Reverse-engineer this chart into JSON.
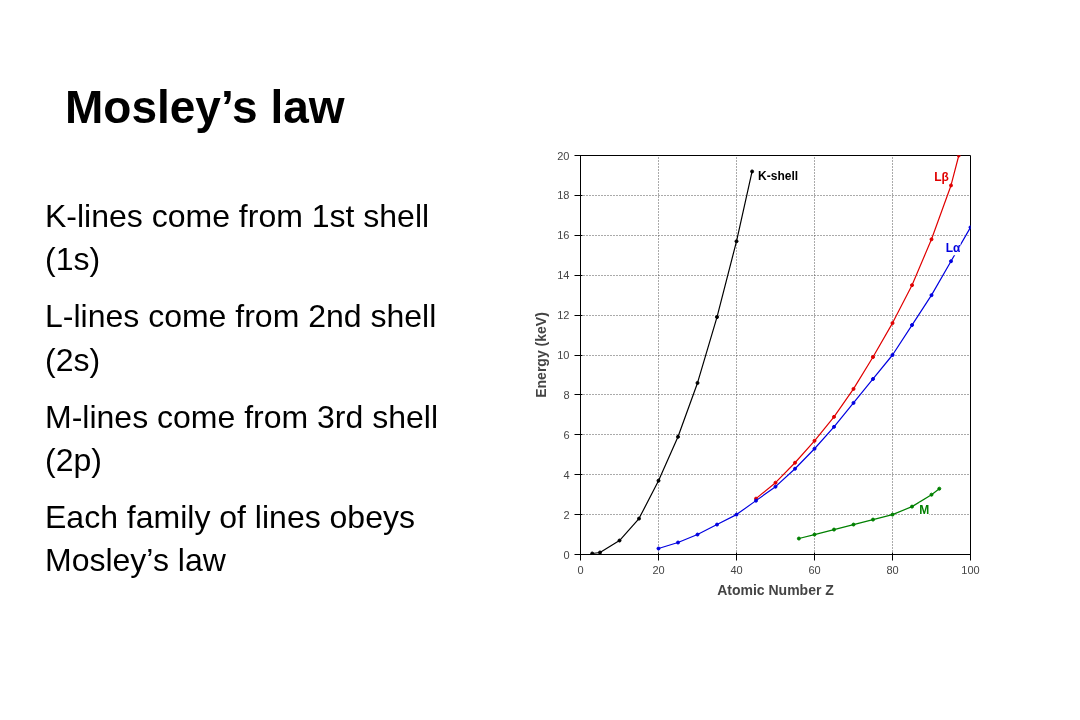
{
  "chart_data": {
    "type": "line",
    "title": "Mosley’s law",
    "xlabel": "Atomic Number Z",
    "ylabel": "Energy (keV)",
    "xlim": [
      0,
      100
    ],
    "ylim": [
      0,
      20
    ],
    "xticks": [
      0,
      20,
      40,
      60,
      80,
      100
    ],
    "yticks": [
      0,
      2,
      4,
      6,
      8,
      10,
      12,
      14,
      16,
      18,
      20
    ],
    "grid": true,
    "legend": false,
    "marker": "circle",
    "line_style": "solid",
    "annotations": [
      "K-lines come from 1st shell (1s)",
      "L-lines come from 2nd shell (2s)",
      "M-lines come from 3rd shell (2p)",
      "Each family of lines obeys Mosley’s law"
    ],
    "series": [
      {
        "name": "K-shell",
        "color": "#000000",
        "x": [
          3,
          5,
          10,
          15,
          20,
          25,
          30,
          35,
          40,
          44
        ],
        "values": [
          0.05,
          0.1,
          0.7,
          1.8,
          3.7,
          5.9,
          8.6,
          11.9,
          15.7,
          19.2
        ]
      },
      {
        "name": "Lβ",
        "color": "#e00000",
        "x": [
          45,
          50,
          55,
          60,
          65,
          70,
          75,
          80,
          85,
          90,
          95,
          97
        ],
        "values": [
          2.8,
          3.6,
          4.6,
          5.7,
          6.9,
          8.3,
          9.9,
          11.6,
          13.5,
          15.8,
          18.5,
          20
        ]
      },
      {
        "name": "Lα",
        "color": "#0000e0",
        "x": [
          20,
          25,
          30,
          35,
          40,
          45,
          50,
          55,
          60,
          65,
          70,
          75,
          80,
          85,
          90,
          95,
          100
        ],
        "values": [
          0.3,
          0.6,
          1.0,
          1.5,
          2.0,
          2.7,
          3.4,
          4.3,
          5.3,
          6.4,
          7.6,
          8.8,
          10.0,
          11.5,
          13.0,
          14.7,
          16.4
        ]
      },
      {
        "name": "M",
        "color": "#008000",
        "x": [
          56,
          60,
          65,
          70,
          75,
          80,
          85,
          90,
          92
        ],
        "values": [
          0.8,
          1.0,
          1.25,
          1.5,
          1.75,
          2.0,
          2.4,
          3.0,
          3.3
        ]
      }
    ]
  }
}
